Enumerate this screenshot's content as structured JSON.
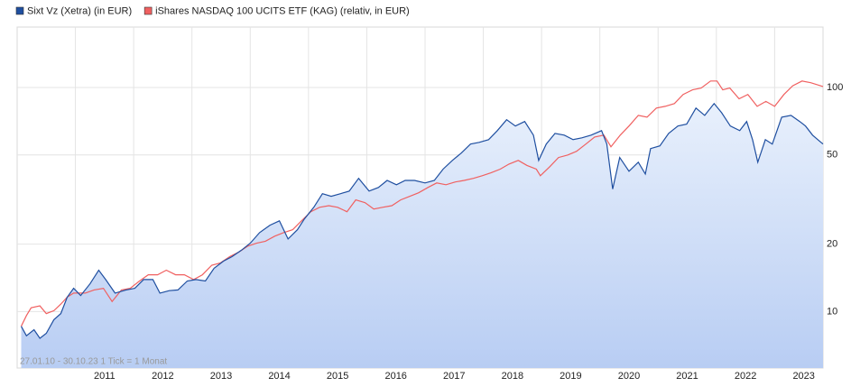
{
  "chart_data": {
    "type": "line",
    "log_scale": true,
    "grid": true,
    "legend": "top-left",
    "note": "27.01.10 - 30.10.23   1 Tick = 1 Monat",
    "xlim": [
      2010,
      2023.83
    ],
    "ylim": [
      5.6,
      186
    ],
    "xticks": [
      2011,
      2012,
      2013,
      2014,
      2015,
      2016,
      2017,
      2018,
      2019,
      2020,
      2021,
      2022,
      2023
    ],
    "yticks": [
      10,
      20,
      50,
      100
    ],
    "series": [
      {
        "name": "Sixt Vz (Xetra) (in EUR)",
        "color": "#1f4fa0",
        "area": true,
        "x": [
          2010.07,
          2010.16,
          2010.29,
          2010.39,
          2010.5,
          2010.63,
          2010.75,
          2010.86,
          2010.97,
          2011.09,
          2011.25,
          2011.4,
          2011.52,
          2011.68,
          2011.87,
          2012.02,
          2012.17,
          2012.33,
          2012.45,
          2012.61,
          2012.76,
          2012.92,
          2013.07,
          2013.23,
          2013.38,
          2013.54,
          2013.69,
          2013.85,
          2014.0,
          2014.16,
          2014.34,
          2014.5,
          2014.65,
          2014.81,
          2014.93,
          2015.09,
          2015.24,
          2015.39,
          2015.55,
          2015.7,
          2015.86,
          2016.04,
          2016.2,
          2016.35,
          2016.51,
          2016.66,
          2016.82,
          2017.0,
          2017.16,
          2017.31,
          2017.47,
          2017.62,
          2017.78,
          2017.93,
          2018.09,
          2018.24,
          2018.4,
          2018.55,
          2018.71,
          2018.86,
          2018.95,
          2019.08,
          2019.23,
          2019.39,
          2019.54,
          2019.69,
          2019.85,
          2020.03,
          2020.12,
          2020.22,
          2020.34,
          2020.5,
          2020.66,
          2020.78,
          2020.87,
          2021.03,
          2021.18,
          2021.34,
          2021.49,
          2021.65,
          2021.8,
          2021.96,
          2022.09,
          2022.24,
          2022.4,
          2022.52,
          2022.62,
          2022.71,
          2022.84,
          2022.96,
          2023.12,
          2023.28,
          2023.43,
          2023.53,
          2023.65,
          2023.74,
          2023.83
        ],
        "values": [
          8.6,
          7.8,
          8.3,
          7.6,
          8.0,
          9.2,
          9.8,
          11.6,
          12.7,
          11.8,
          13.3,
          15.3,
          13.9,
          12.1,
          12.5,
          12.7,
          13.9,
          13.9,
          12.1,
          12.4,
          12.5,
          13.7,
          13.9,
          13.7,
          15.6,
          16.8,
          17.6,
          18.8,
          20.2,
          22.5,
          24.3,
          25.4,
          21.1,
          23.2,
          25.9,
          29.2,
          33.6,
          32.7,
          33.6,
          34.5,
          39.3,
          34.5,
          35.8,
          38.5,
          36.8,
          38.5,
          38.5,
          37.5,
          38.5,
          43.2,
          47.3,
          50.9,
          55.9,
          56.9,
          58.5,
          64.2,
          71.8,
          67.3,
          70.5,
          61.3,
          47.3,
          55.9,
          62.4,
          61.3,
          58.5,
          59.6,
          61.3,
          64.2,
          55.9,
          35.2,
          48.7,
          42.3,
          46.4,
          41.1,
          53.4,
          54.9,
          62.4,
          67.3,
          68.6,
          80.9,
          75.1,
          84.8,
          77.2,
          67.3,
          64.2,
          70.5,
          58.5,
          46.4,
          58.5,
          55.9,
          73.7,
          75.1,
          70.5,
          67.3,
          61.3,
          58.5,
          55.9
        ]
      },
      {
        "name": "iShares NASDAQ 100 UCITS ETF (KAG) (relativ, in EUR)",
        "color": "#f06060",
        "area": false,
        "x": [
          2010.07,
          2010.16,
          2010.24,
          2010.39,
          2010.5,
          2010.63,
          2010.75,
          2010.86,
          2010.97,
          2011.17,
          2011.32,
          2011.48,
          2011.63,
          2011.79,
          2011.94,
          2012.1,
          2012.25,
          2012.41,
          2012.56,
          2012.72,
          2012.87,
          2013.03,
          2013.18,
          2013.34,
          2013.49,
          2013.65,
          2013.8,
          2013.96,
          2014.11,
          2014.26,
          2014.42,
          2014.57,
          2014.73,
          2014.88,
          2015.04,
          2015.19,
          2015.35,
          2015.5,
          2015.66,
          2015.81,
          2015.97,
          2016.12,
          2016.27,
          2016.43,
          2016.58,
          2016.74,
          2016.89,
          2017.05,
          2017.2,
          2017.36,
          2017.52,
          2017.67,
          2017.83,
          2017.98,
          2018.13,
          2018.29,
          2018.44,
          2018.6,
          2018.75,
          2018.91,
          2018.98,
          2019.14,
          2019.29,
          2019.45,
          2019.6,
          2019.76,
          2019.91,
          2020.07,
          2020.19,
          2020.35,
          2020.5,
          2020.66,
          2020.81,
          2020.97,
          2021.12,
          2021.28,
          2021.43,
          2021.59,
          2021.74,
          2021.9,
          2022.01,
          2022.11,
          2022.23,
          2022.39,
          2022.54,
          2022.7,
          2022.85,
          2023.0,
          2023.16,
          2023.31,
          2023.47,
          2023.62,
          2023.83
        ],
        "values": [
          8.6,
          9.6,
          10.4,
          10.6,
          9.8,
          10.1,
          10.8,
          11.6,
          12.1,
          12.1,
          12.5,
          12.7,
          11.1,
          12.5,
          12.7,
          13.7,
          14.6,
          14.6,
          15.3,
          14.6,
          14.6,
          13.9,
          14.6,
          16.1,
          16.5,
          17.6,
          18.4,
          19.6,
          20.2,
          20.6,
          21.7,
          22.5,
          23.2,
          25.4,
          27.9,
          29.2,
          29.7,
          29.2,
          27.9,
          31.5,
          30.6,
          28.7,
          29.2,
          29.7,
          31.5,
          32.7,
          33.9,
          35.8,
          37.5,
          36.8,
          37.9,
          38.5,
          39.3,
          40.4,
          41.6,
          43.2,
          45.5,
          47.3,
          44.9,
          43.2,
          40.4,
          44.3,
          48.7,
          50.0,
          51.9,
          55.9,
          60.1,
          61.3,
          54.4,
          61.3,
          67.3,
          75.1,
          73.7,
          80.9,
          82.4,
          84.8,
          93.1,
          97.6,
          99.4,
          106.9,
          106.9,
          97.6,
          99.4,
          89.0,
          93.1,
          82.4,
          86.7,
          82.4,
          93.1,
          101.7,
          106.9,
          105.0,
          101.0
        ]
      }
    ]
  }
}
